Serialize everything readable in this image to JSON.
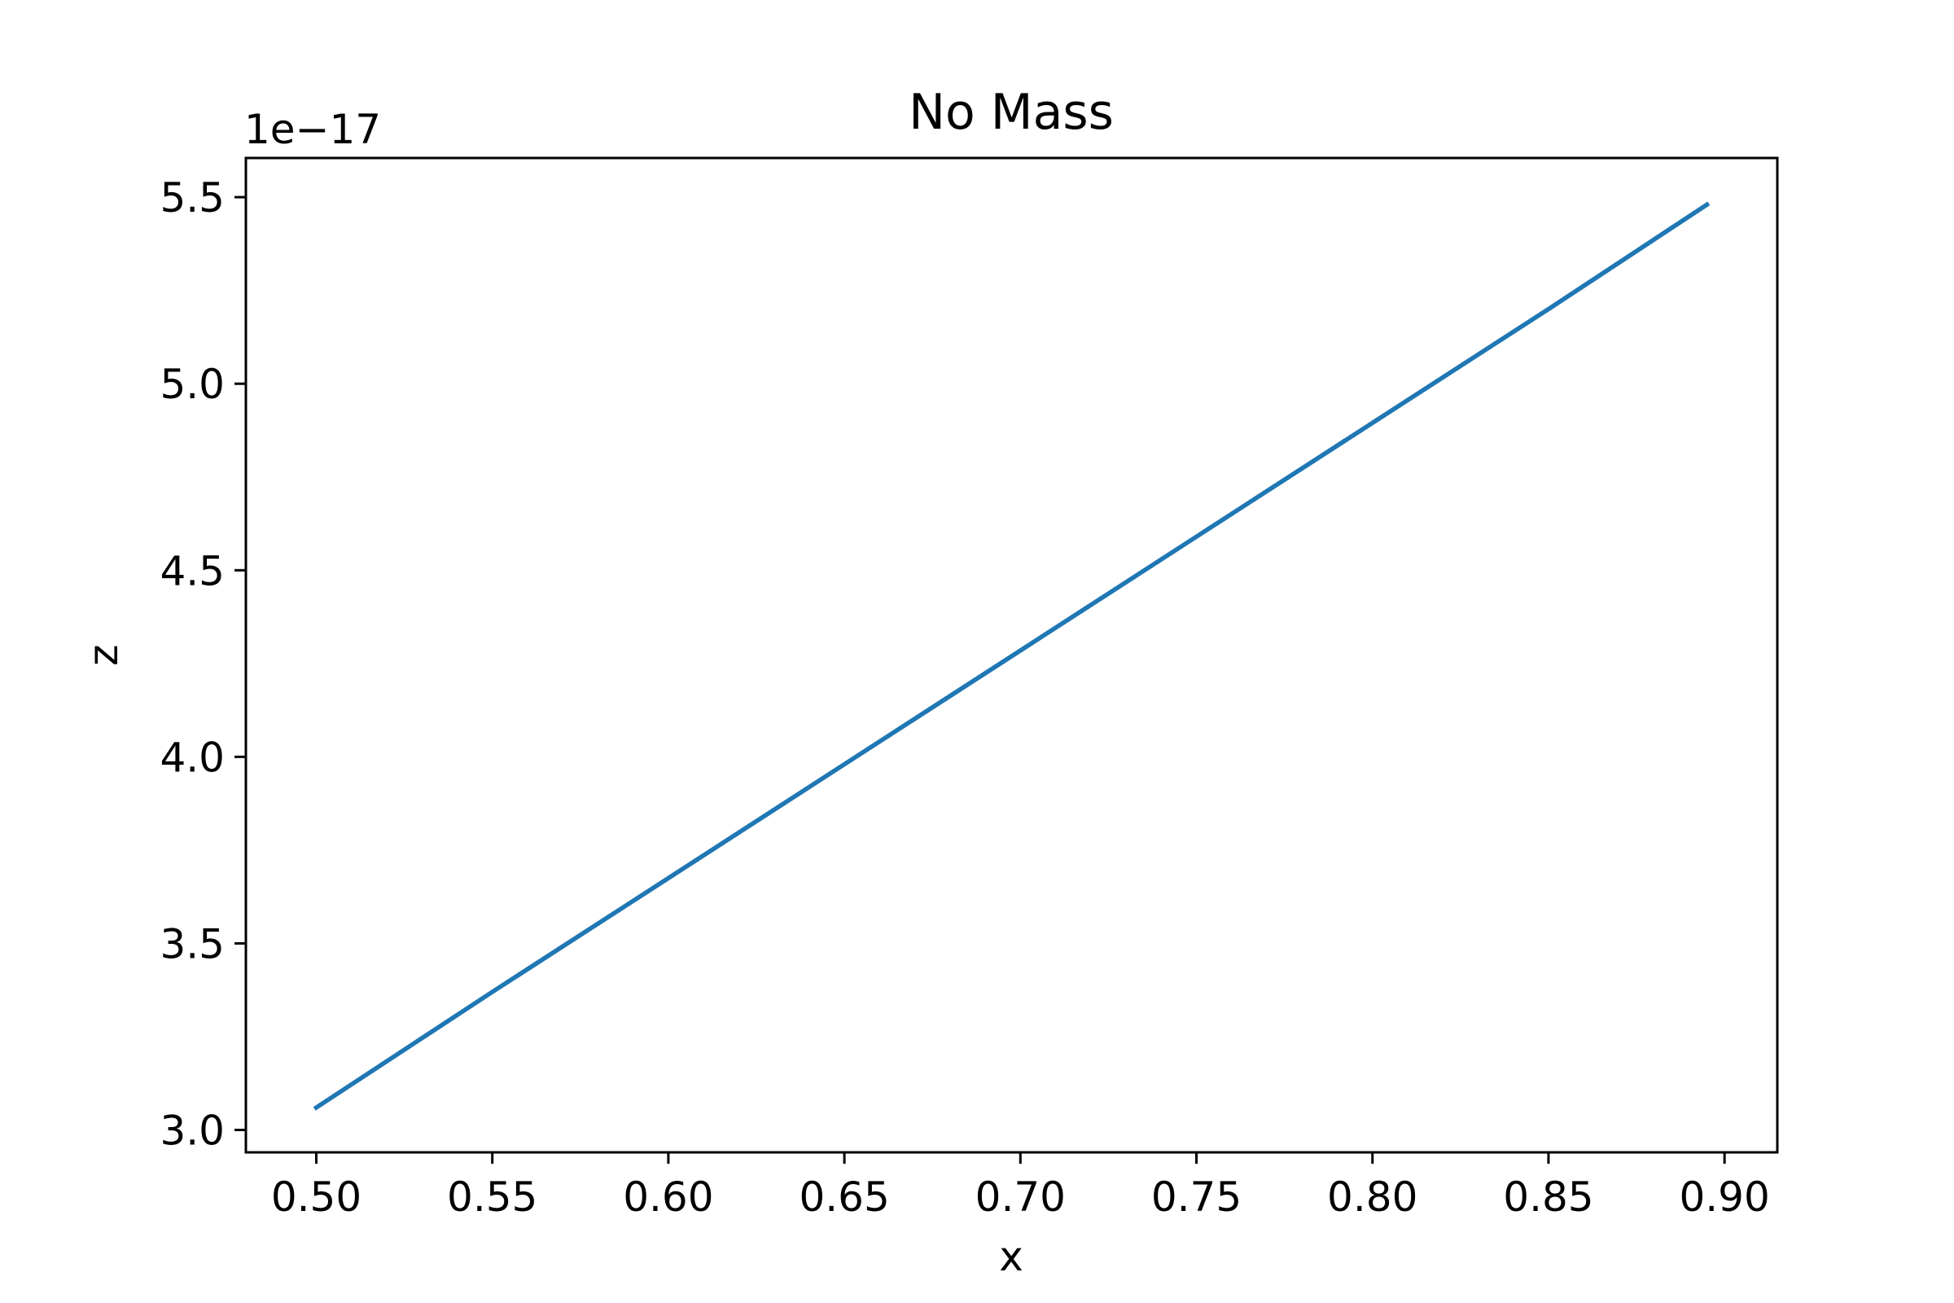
{
  "chart_data": {
    "type": "line",
    "title": "No Mass",
    "xlabel": "x",
    "ylabel": "z",
    "y_offset_text": "1e−17",
    "xlim": [
      0.48,
      0.915
    ],
    "ylim": [
      2.94,
      5.605
    ],
    "x_ticks": [
      0.5,
      0.55,
      0.6,
      0.65,
      0.7,
      0.75,
      0.8,
      0.85,
      0.9
    ],
    "x_tick_labels": [
      "0.50",
      "0.55",
      "0.60",
      "0.65",
      "0.70",
      "0.75",
      "0.80",
      "0.85",
      "0.90"
    ],
    "y_ticks": [
      3.0,
      3.5,
      4.0,
      4.5,
      5.0,
      5.5
    ],
    "y_tick_labels": [
      "3.0",
      "3.5",
      "4.0",
      "4.5",
      "5.0",
      "5.5"
    ],
    "grid": false,
    "series": [
      {
        "color": "#1f77b4",
        "x": [
          0.5,
          0.55,
          0.6,
          0.65,
          0.7,
          0.75,
          0.8,
          0.85,
          0.895
        ],
        "y": [
          3.06,
          3.37,
          3.675,
          3.98,
          4.285,
          4.59,
          4.895,
          5.2,
          5.48
        ]
      }
    ]
  }
}
